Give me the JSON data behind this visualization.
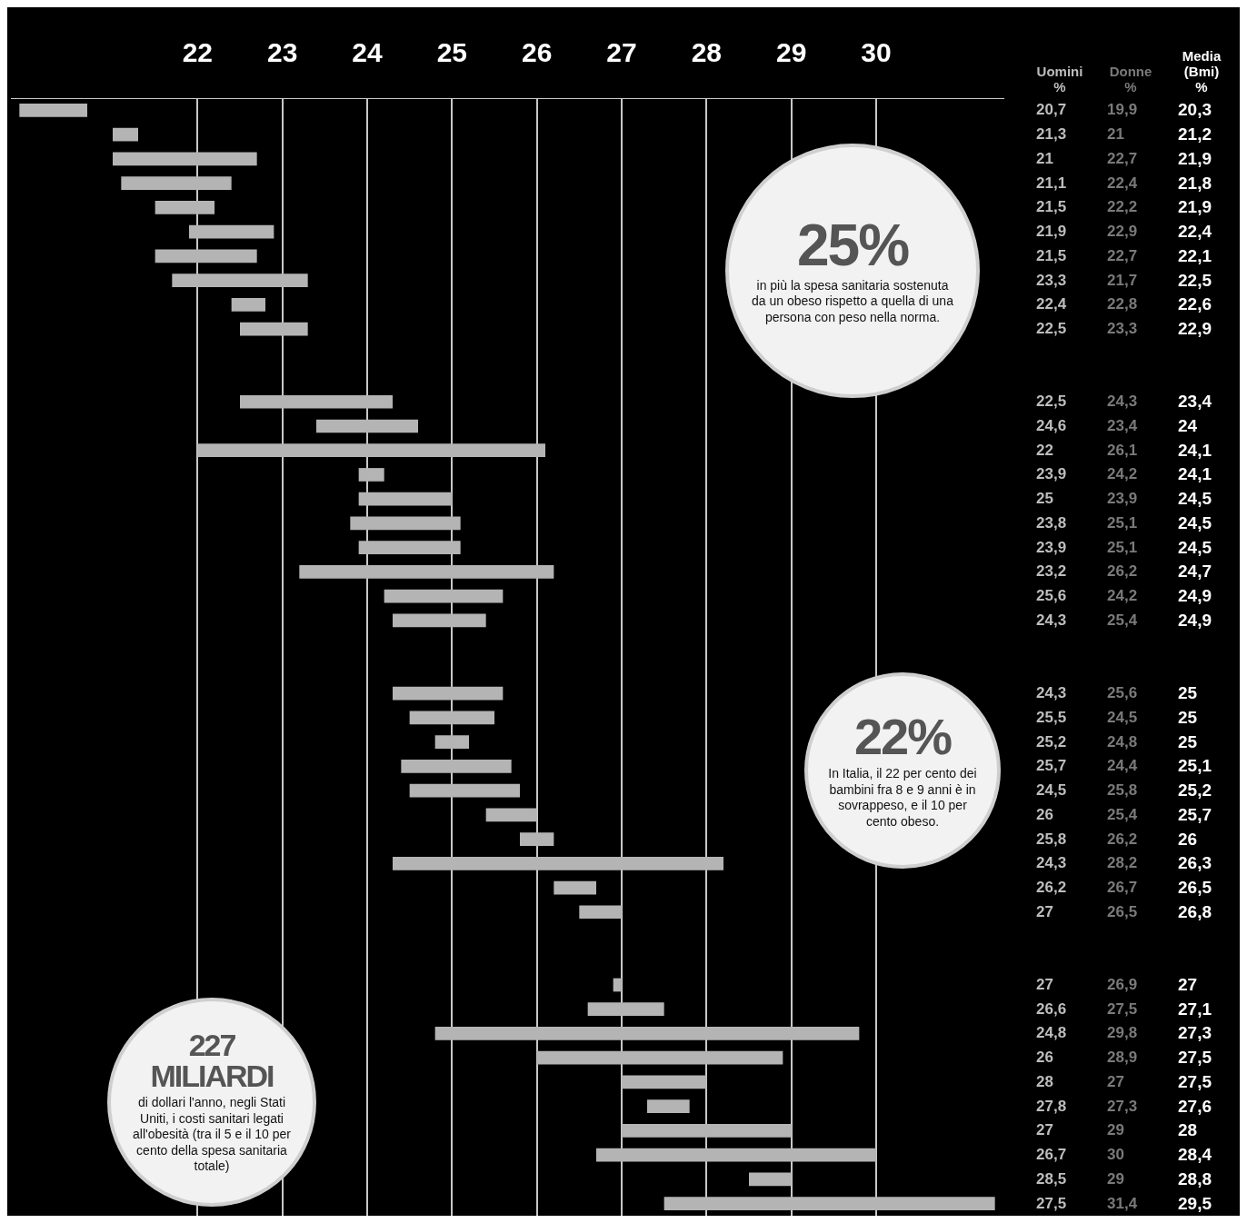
{
  "chart_data": [
    {
      "type": "bar",
      "orientation": "horizontal",
      "xlim": [
        19.8,
        31.5
      ],
      "xticks": [
        22,
        23,
        24,
        25,
        26,
        27,
        28,
        29,
        30
      ],
      "grid": "x",
      "color": "#b4b4b4",
      "categories": [
        null,
        null,
        null,
        null,
        null,
        null,
        null,
        null,
        null,
        null,
        null,
        null,
        null,
        null,
        null,
        null,
        null,
        null,
        null,
        null,
        null,
        null,
        null,
        null,
        null,
        null,
        null,
        null,
        null,
        null,
        null,
        null,
        null,
        null,
        null,
        null,
        null,
        null,
        null,
        null,
        null,
        null,
        null,
        null,
        null,
        null
      ],
      "base": [
        20.7,
        21.3,
        21,
        21.1,
        21.5,
        21.9,
        21.5,
        23.3,
        22.4,
        22.5,
        null,
        null,
        22.5,
        24.6,
        22,
        23.9,
        25,
        23.8,
        23.9,
        23.2,
        25.6,
        24.3,
        null,
        null,
        24.3,
        25.5,
        25.2,
        25.7,
        24.5,
        26,
        25.8,
        24.3,
        26.2,
        27,
        null,
        null,
        27,
        26.6,
        24.8,
        26,
        28,
        27.8,
        27,
        26.7,
        28.5,
        27.5
      ],
      "values": [
        -0.8,
        -0.3,
        1.7,
        1.3,
        0.7,
        1.0,
        1.2,
        -1.6,
        0.4,
        0.8,
        null,
        null,
        1.8,
        -1.2,
        4.1,
        0.3,
        -1.1,
        1.3,
        1.2,
        3.0,
        -1.4,
        1.1,
        null,
        null,
        1.3,
        -1.0,
        -0.4,
        -1.3,
        1.3,
        -0.6,
        0.4,
        3.9,
        0.5,
        -0.5,
        null,
        null,
        -0.1,
        0.9,
        5.0,
        2.9,
        -1.0,
        -0.5,
        2.0,
        3.3,
        0.5,
        3.9
      ],
      "annotations": [
        "25%",
        "in più la spesa sanitaria sostenuta da un obeso rispetto a quella di una persona con peso nella norma.",
        "22%",
        "In Italia, il 22 per cento dei bambini fra 8 e 9 anni è in sovrappeso, e il 10 per cento obeso.",
        "227 MILIARDI",
        "di dollari l'anno, negli Stati Uniti, i costi sanitari legati all'obesità (tra il 5 e il 10 per cento della spesa sanitaria totale)"
      ]
    },
    {
      "type": "other",
      "annotations": [
        "Uomini\n%",
        "Donne\n%",
        "Media\n(Bmi)\n%",
        "20,7",
        "19,9",
        "20,3",
        "21,3",
        "21",
        "21,2",
        "21",
        "22,7",
        "21,9",
        "21,1",
        "22,4",
        "21,8",
        "21,5",
        "22,2",
        "21,9",
        "21,9",
        "22,9",
        "22,4",
        "21,5",
        "22,7",
        "22,1",
        "23,3",
        "21,7",
        "22,5",
        "22,4",
        "22,8",
        "22,6",
        "22,5",
        "23,3",
        "22,9",
        "22,5",
        "24,3",
        "23,4",
        "24,6",
        "23,4",
        "24",
        "22",
        "26,1",
        "24,1",
        "23,9",
        "24,2",
        "24,1",
        "25",
        "23,9",
        "24,5",
        "23,8",
        "25,1",
        "24,5",
        "23,9",
        "25,1",
        "24,5",
        "23,2",
        "26,2",
        "24,7",
        "25,6",
        "24,2",
        "24,9",
        "24,3",
        "25,4",
        "24,9",
        "24,3",
        "25,6",
        "25",
        "25,5",
        "24,5",
        "25",
        "25,2",
        "24,8",
        "25",
        "25,7",
        "24,4",
        "25,1",
        "24,5",
        "25,8",
        "25,2",
        "26",
        "25,4",
        "25,7",
        "25,8",
        "26,2",
        "26",
        "24,3",
        "28,2",
        "26,3",
        "26,2",
        "26,7",
        "26,5",
        "27",
        "26,5",
        "26,8",
        "27",
        "26,9",
        "27",
        "26,6",
        "27,5",
        "27,1",
        "24,8",
        "29,8",
        "27,3",
        "26",
        "28,9",
        "27,5",
        "28",
        "27",
        "27,5",
        "27,8",
        "27,3",
        "27,6",
        "27",
        "29",
        "28",
        "26,7",
        "30",
        "28,4",
        "28,5",
        "29",
        "28,8",
        "27,5",
        "31,4",
        "29,5"
      ]
    }
  ]
}
